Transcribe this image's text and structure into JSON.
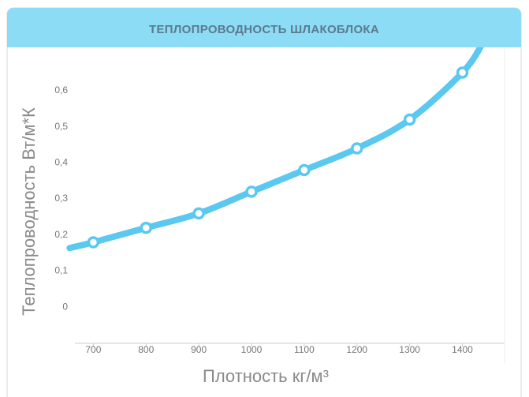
{
  "chart_data": {
    "type": "line",
    "title": "ТЕПЛОПРОВОДНОСТЬ ШЛАКОБЛОКА",
    "x_label": "Плотность кг/м³",
    "y_label": "Теплопроводность Вт/м*К",
    "x": [
      655,
      700,
      800,
      900,
      1000,
      1100,
      1200,
      1300,
      1400,
      1438
    ],
    "series": [
      {
        "color": "#5bc8f0",
        "values": [
          0.164,
          0.18,
          0.22,
          0.26,
          0.32,
          0.38,
          0.44,
          0.52,
          0.65,
          0.73
        ]
      }
    ],
    "xlim": [
      665,
      1480
    ],
    "xticks": [
      700,
      800,
      900,
      1000,
      1100,
      1200,
      1300,
      1400
    ],
    "ylim": [
      -0.1,
      0.72
    ],
    "yticks": [
      0,
      {
        "value": 0.1,
        "label": "0,1"
      },
      {
        "value": 0.2,
        "label": "0,2"
      },
      {
        "value": 0.3,
        "label": "0,3"
      },
      {
        "value": 0.4,
        "label": "0,4"
      },
      {
        "value": 0.5,
        "label": "0,5"
      },
      {
        "value": 0.6,
        "label": "0,6"
      }
    ]
  }
}
